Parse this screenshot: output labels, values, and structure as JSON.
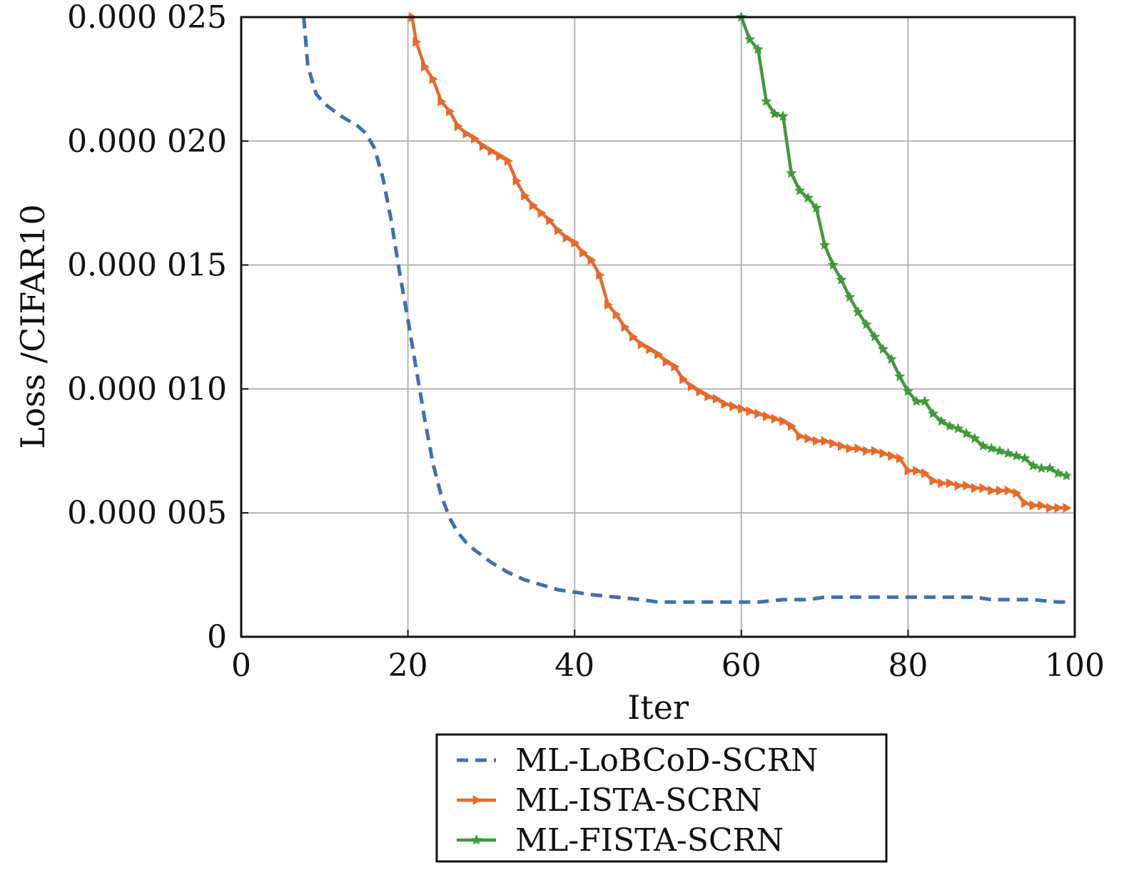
{
  "chart_data": {
    "type": "line",
    "xlabel": "Iter",
    "ylabel": "Loss /CIFAR10",
    "xlim": [
      0,
      100
    ],
    "ylim": [
      0,
      2.5e-05
    ],
    "grid": true,
    "legend_position": "bottom-center-below",
    "x_tick_labels": [
      "0",
      "20",
      "40",
      "60",
      "80",
      "100"
    ],
    "y_tick_labels": [
      "0",
      "0.000 005",
      "0.000 010",
      "0.000 015",
      "0.000 020",
      "0.000 025"
    ],
    "series": [
      {
        "name": "ML-LoBCoD-SCRN",
        "color": "#3f6fb0",
        "style": "dashed",
        "marker": "none",
        "x": [
          7.5,
          8,
          9,
          10,
          12,
          14,
          15,
          16,
          17,
          18,
          19,
          20,
          21,
          22,
          23,
          24,
          25,
          26,
          27,
          28,
          30,
          32,
          34,
          36,
          38,
          40,
          42,
          45,
          48,
          50,
          52,
          55,
          58,
          60,
          62,
          65,
          68,
          70,
          72,
          75,
          78,
          80,
          82,
          85,
          88,
          90,
          92,
          95,
          98,
          99
        ],
        "y": [
          2.5e-05,
          2.3e-05,
          2.19e-05,
          2.15e-05,
          2.1e-05,
          2.06e-05,
          2.03e-05,
          1.97e-05,
          1.85e-05,
          1.68e-05,
          1.47e-05,
          1.28e-05,
          1.08e-05,
          8.8e-06,
          7e-06,
          5.7e-06,
          4.8e-06,
          4.2e-06,
          3.8e-06,
          3.5e-06,
          3e-06,
          2.6e-06,
          2.3e-06,
          2.1e-06,
          1.9e-06,
          1.8e-06,
          1.7e-06,
          1.6e-06,
          1.5e-06,
          1.4e-06,
          1.4e-06,
          1.4e-06,
          1.4e-06,
          1.4e-06,
          1.4e-06,
          1.5e-06,
          1.5e-06,
          1.6e-06,
          1.6e-06,
          1.6e-06,
          1.6e-06,
          1.6e-06,
          1.6e-06,
          1.6e-06,
          1.6e-06,
          1.5e-06,
          1.5e-06,
          1.5e-06,
          1.4e-06,
          1.4e-06
        ]
      },
      {
        "name": "ML-ISTA-SCRN",
        "color": "#e8692a",
        "style": "solid",
        "marker": "triangle-right",
        "x": [
          20.5,
          21,
          22,
          23,
          24,
          25,
          26,
          27,
          28,
          29,
          30,
          31,
          32,
          33,
          34,
          35,
          36,
          37,
          38,
          39,
          40,
          41,
          42,
          43,
          44,
          45,
          46,
          47,
          48,
          49,
          50,
          51,
          52,
          53,
          54,
          55,
          56,
          57,
          58,
          59,
          60,
          61,
          62,
          63,
          64,
          65,
          66,
          67,
          68,
          69,
          70,
          71,
          72,
          73,
          74,
          75,
          76,
          77,
          78,
          79,
          80,
          81,
          82,
          83,
          84,
          85,
          86,
          87,
          88,
          89,
          90,
          91,
          92,
          93,
          94,
          95,
          96,
          97,
          98,
          99
        ],
        "y": [
          2.5e-05,
          2.4e-05,
          2.3e-05,
          2.25e-05,
          2.16e-05,
          2.12e-05,
          2.06e-05,
          2.03e-05,
          2.01e-05,
          1.98e-05,
          1.96e-05,
          1.94e-05,
          1.92e-05,
          1.84e-05,
          1.78e-05,
          1.74e-05,
          1.71e-05,
          1.68e-05,
          1.64e-05,
          1.61e-05,
          1.59e-05,
          1.55e-05,
          1.52e-05,
          1.46e-05,
          1.34e-05,
          1.3e-05,
          1.25e-05,
          1.21e-05,
          1.18e-05,
          1.16e-05,
          1.14e-05,
          1.11e-05,
          1.09e-05,
          1.04e-05,
          1.01e-05,
          9.9e-06,
          9.7e-06,
          9.6e-06,
          9.4e-06,
          9.3e-06,
          9.2e-06,
          9.1e-06,
          9e-06,
          8.9e-06,
          8.8e-06,
          8.7e-06,
          8.5e-06,
          8.1e-06,
          8e-06,
          7.9e-06,
          7.9e-06,
          7.8e-06,
          7.7e-06,
          7.6e-06,
          7.6e-06,
          7.5e-06,
          7.5e-06,
          7.4e-06,
          7.3e-06,
          7.2e-06,
          6.7e-06,
          6.7e-06,
          6.6e-06,
          6.3e-06,
          6.2e-06,
          6.2e-06,
          6.1e-06,
          6.1e-06,
          6e-06,
          6e-06,
          5.9e-06,
          5.9e-06,
          5.9e-06,
          5.8e-06,
          5.4e-06,
          5.3e-06,
          5.3e-06,
          5.2e-06,
          5.2e-06,
          5.2e-06
        ]
      },
      {
        "name": "ML-FISTA-SCRN",
        "color": "#3f9a3a",
        "style": "solid",
        "marker": "star",
        "x": [
          60,
          61,
          62,
          63,
          64,
          65,
          66,
          67,
          68,
          69,
          70,
          71,
          72,
          73,
          74,
          75,
          76,
          77,
          78,
          79,
          80,
          81,
          82,
          83,
          84,
          85,
          86,
          87,
          88,
          89,
          90,
          91,
          92,
          93,
          94,
          95,
          96,
          97,
          98,
          99
        ],
        "y": [
          2.5e-05,
          2.41e-05,
          2.37e-05,
          2.16e-05,
          2.11e-05,
          2.1e-05,
          1.87e-05,
          1.8e-05,
          1.77e-05,
          1.73e-05,
          1.58e-05,
          1.5e-05,
          1.44e-05,
          1.37e-05,
          1.31e-05,
          1.26e-05,
          1.21e-05,
          1.16e-05,
          1.12e-05,
          1.05e-05,
          9.9e-06,
          9.5e-06,
          9.5e-06,
          9e-06,
          8.7e-06,
          8.5e-06,
          8.4e-06,
          8.2e-06,
          8e-06,
          7.7e-06,
          7.6e-06,
          7.5e-06,
          7.4e-06,
          7.3e-06,
          7.2e-06,
          6.9e-06,
          6.8e-06,
          6.8e-06,
          6.6e-06,
          6.5e-06
        ]
      }
    ]
  }
}
